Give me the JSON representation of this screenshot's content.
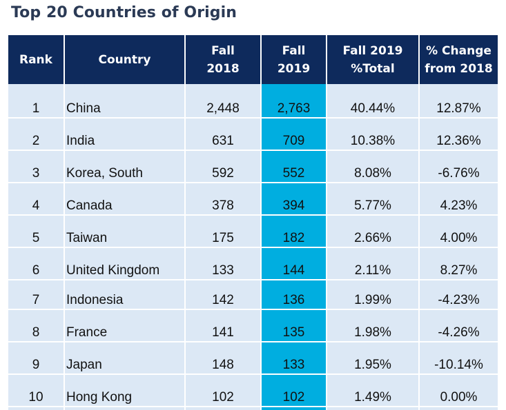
{
  "title": "Top 20 Countries of Origin",
  "table": {
    "headers": {
      "rank": "Rank",
      "country": "Country",
      "fall2018_line1": "Fall",
      "fall2018_line2": "2018",
      "fall2019_line1": "Fall",
      "fall2019_line2": "2019",
      "pct_total_line1": "Fall 2019",
      "pct_total_line2": "%Total",
      "change_line1": "% Change",
      "change_line2": "from 2018"
    },
    "rows": [
      {
        "rank": "1",
        "country": "China",
        "fall2018": "2,448",
        "fall2019": "2,763",
        "pct_total": "40.44%",
        "change": "12.87%"
      },
      {
        "rank": "2",
        "country": "India",
        "fall2018": "631",
        "fall2019": "709",
        "pct_total": "10.38%",
        "change": "12.36%"
      },
      {
        "rank": "3",
        "country": "Korea, South",
        "fall2018": "592",
        "fall2019": "552",
        "pct_total": "8.08%",
        "change": "-6.76%"
      },
      {
        "rank": "4",
        "country": "Canada",
        "fall2018": "378",
        "fall2019": "394",
        "pct_total": "5.77%",
        "change": "4.23%"
      },
      {
        "rank": "5",
        "country": "Taiwan",
        "fall2018": "175",
        "fall2019": "182",
        "pct_total": "2.66%",
        "change": "4.00%"
      },
      {
        "rank": "6",
        "country": "United Kingdom",
        "fall2018": "133",
        "fall2019": "144",
        "pct_total": "2.11%",
        "change": "8.27%"
      },
      {
        "rank": "7",
        "country": "Indonesia",
        "fall2018": "142",
        "fall2019": "136",
        "pct_total": "1.99%",
        "change": "-4.23%"
      },
      {
        "rank": "8",
        "country": "France",
        "fall2018": "141",
        "fall2019": "135",
        "pct_total": "1.98%",
        "change": "-4.26%"
      },
      {
        "rank": "9",
        "country": "Japan",
        "fall2018": "148",
        "fall2019": "133",
        "pct_total": "1.95%",
        "change": "-10.14%"
      },
      {
        "rank": "10",
        "country": "Hong Kong",
        "fall2018": "102",
        "fall2019": "102",
        "pct_total": "1.49%",
        "change": "0.00%"
      }
    ]
  },
  "colors": {
    "title": "#2b3a55",
    "header_bg": "#0e2a5c",
    "row_bg": "#dce8f5",
    "highlight_col": "#00aee0"
  }
}
